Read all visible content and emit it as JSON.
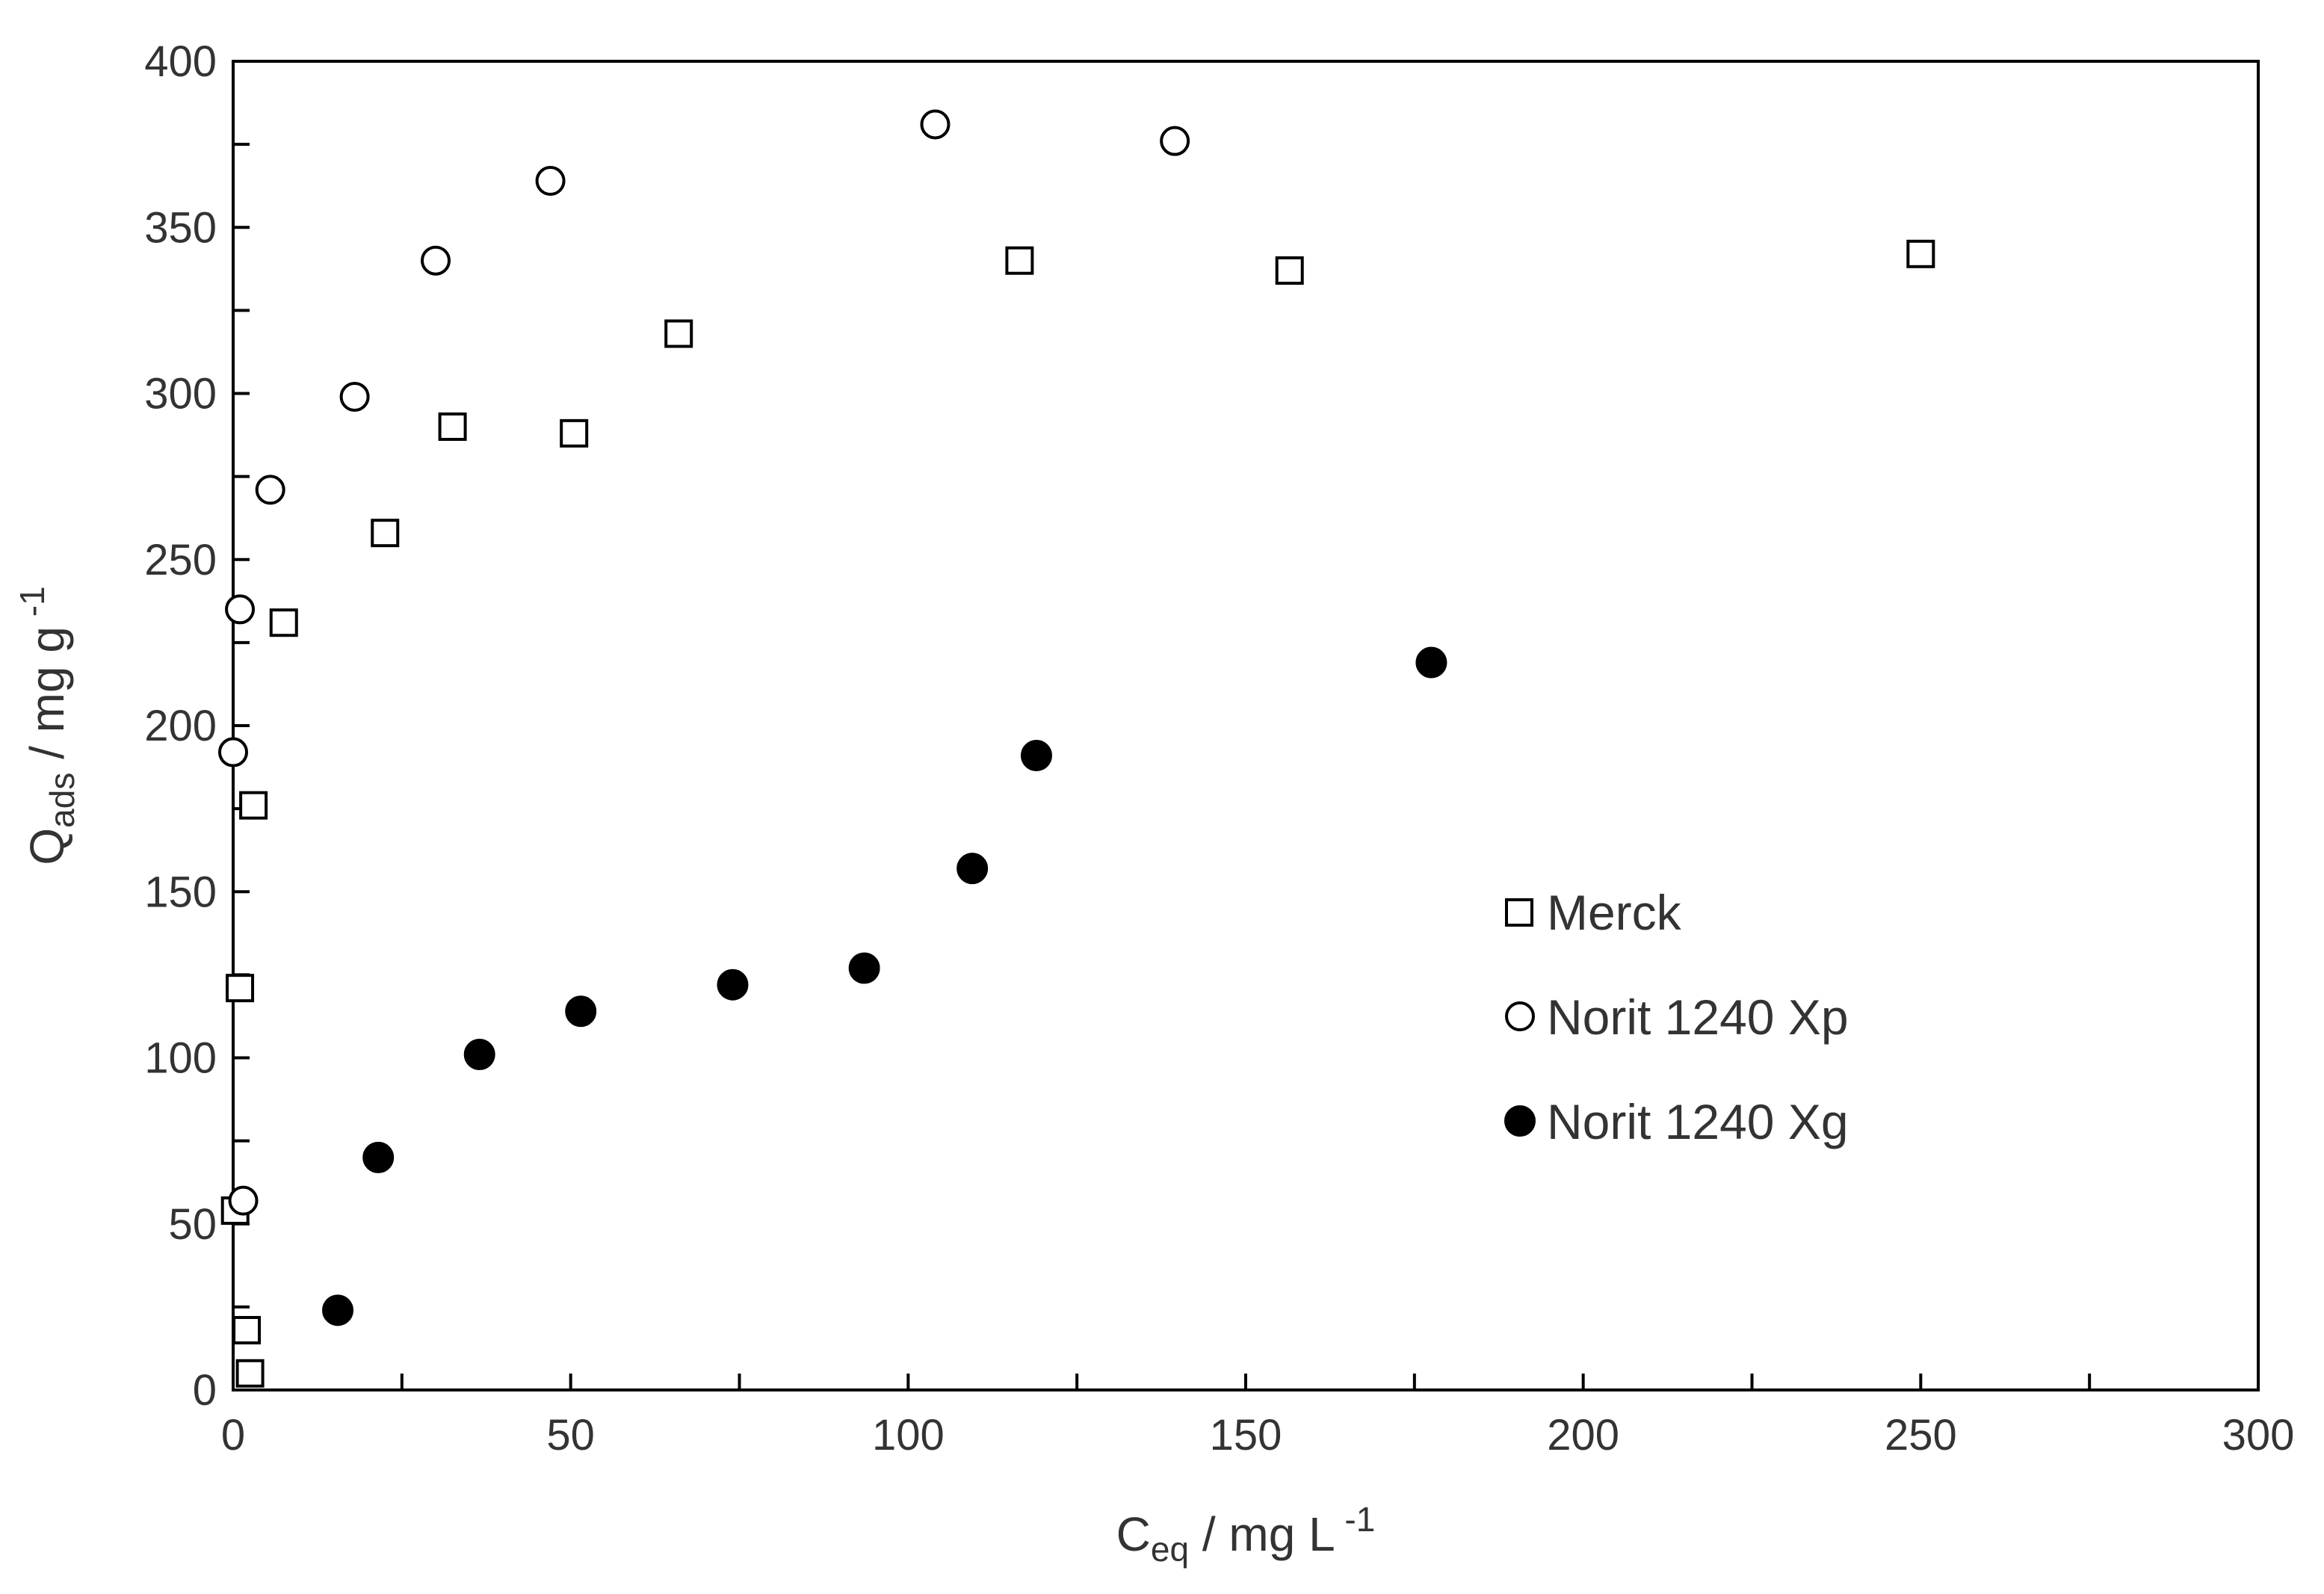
{
  "chart_data": {
    "type": "scatter",
    "xaxis": {
      "label_main": "C",
      "label_sub": "eq",
      "label_rest": " / mg  L",
      "label_sup": " -1",
      "range": [
        0,
        300
      ],
      "ticks": [
        0,
        50,
        100,
        150,
        200,
        250,
        300
      ],
      "tick_labels": [
        "0",
        "50",
        "100",
        "150",
        "200",
        "250",
        "300"
      ],
      "minor_step": 25
    },
    "yaxis": {
      "label_main": "Q",
      "label_sub": "ads",
      "label_rest": " / mg  g",
      "label_sup": " -1",
      "range": [
        0,
        400
      ],
      "ticks": [
        0,
        50,
        100,
        150,
        200,
        250,
        300,
        350,
        400
      ],
      "tick_labels": [
        "0",
        "50",
        "100",
        "150",
        "200",
        "250",
        "300",
        "350",
        "400"
      ],
      "minor_step": 25
    },
    "grid": false,
    "legend_position": "center-right",
    "series": [
      {
        "name": "Merck",
        "marker": "open-square",
        "color": "#000000",
        "points": [
          [
            2.5,
            5
          ],
          [
            2,
            18
          ],
          [
            0.3,
            54
          ],
          [
            1,
            121
          ],
          [
            3,
            176
          ],
          [
            7.5,
            231
          ],
          [
            22.5,
            258
          ],
          [
            32.5,
            290
          ],
          [
            50.5,
            288
          ],
          [
            66,
            318
          ],
          [
            116.5,
            340
          ],
          [
            156.5,
            337
          ],
          [
            250,
            342
          ]
        ]
      },
      {
        "name": "Norit 1240 Xp",
        "marker": "open-circle",
        "color": "#000000",
        "points": [
          [
            1.5,
            57
          ],
          [
            0,
            192
          ],
          [
            1,
            235
          ],
          [
            5.5,
            271
          ],
          [
            18,
            299
          ],
          [
            30,
            340
          ],
          [
            47,
            364
          ],
          [
            104,
            381
          ],
          [
            139.5,
            376
          ]
        ]
      },
      {
        "name": "Norit 1240 Xg",
        "marker": "filled-circle",
        "color": "#000000",
        "points": [
          [
            15.5,
            24
          ],
          [
            21.5,
            70
          ],
          [
            36.5,
            101
          ],
          [
            51.5,
            114
          ],
          [
            74,
            122
          ],
          [
            93.5,
            127
          ],
          [
            109.5,
            157
          ],
          [
            119,
            191
          ],
          [
            177.5,
            219
          ]
        ]
      }
    ]
  }
}
